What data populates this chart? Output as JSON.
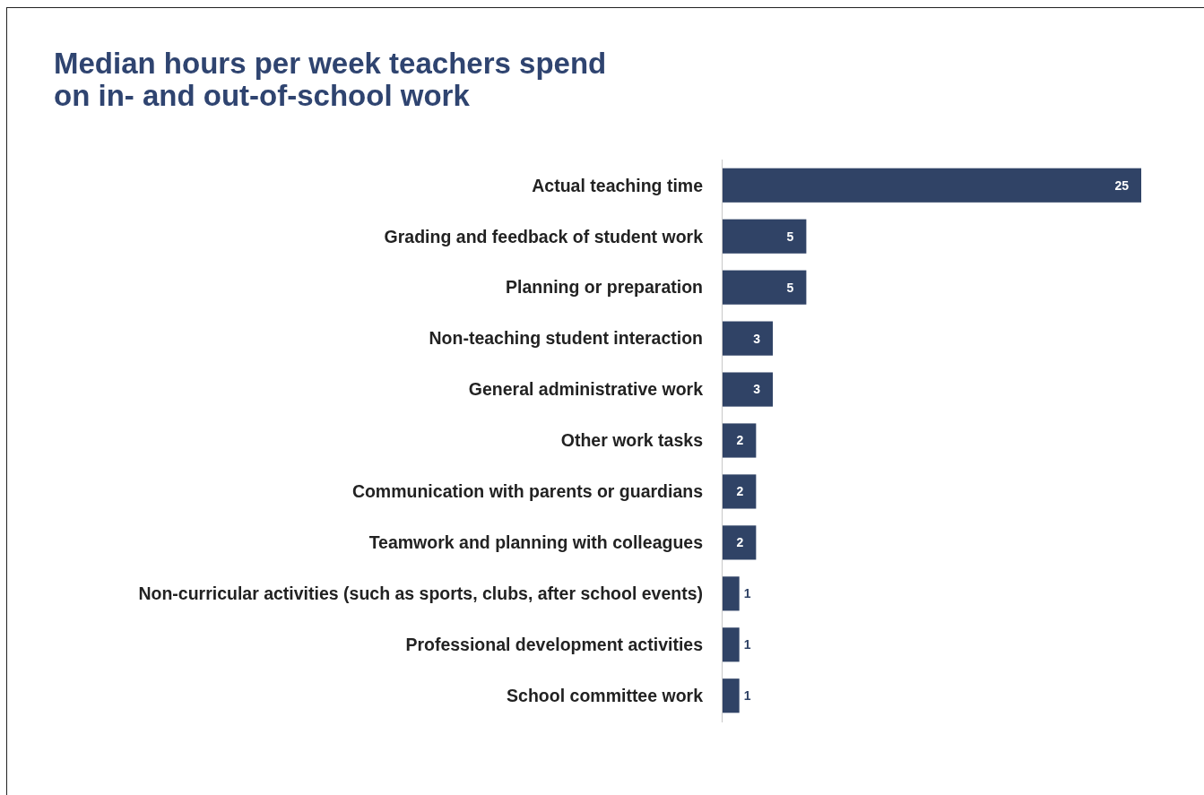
{
  "chart_data": {
    "type": "bar",
    "orientation": "horizontal",
    "title": "Median hours per week teachers spend\non in- and out-of-school work",
    "categories": [
      "Actual teaching time",
      "Grading and feedback of student work",
      "Planning or preparation",
      "Non-teaching student interaction",
      "General administrative work",
      "Other work tasks",
      "Communication with parents or guardians",
      "Teamwork and planning with colleagues",
      "Non-curricular activities (such as sports, clubs, after school events)",
      "Professional development activities",
      "School committee work"
    ],
    "values": [
      25,
      5,
      5,
      3,
      3,
      2,
      2,
      2,
      1,
      1,
      1
    ],
    "color": "#304366",
    "data_labels": true
  }
}
